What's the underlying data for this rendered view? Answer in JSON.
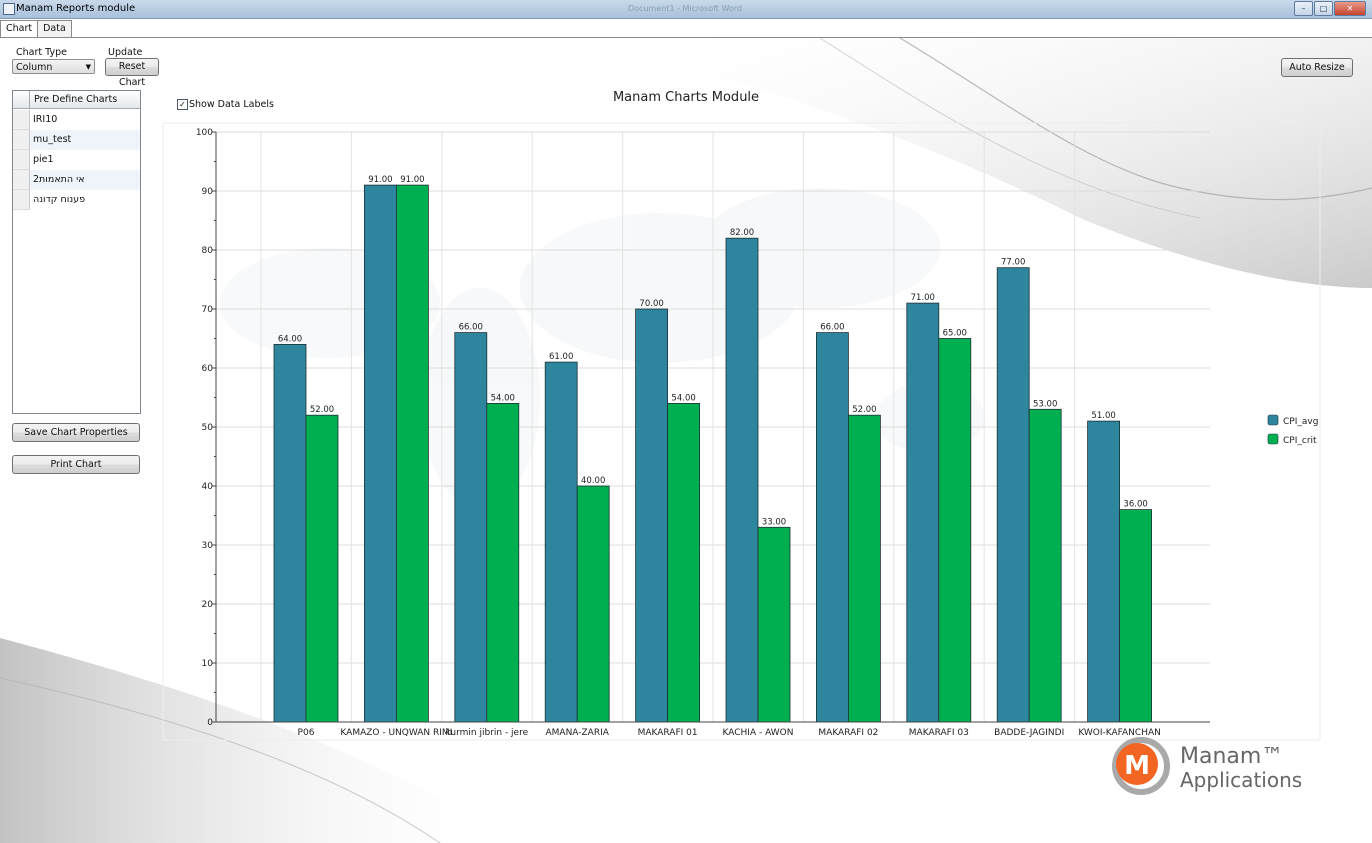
{
  "window": {
    "title": "Manam Reports module",
    "background_title": "Document1 - Microsoft Word",
    "controls": {
      "minimize": "–",
      "maximize": "□",
      "close": "✕"
    }
  },
  "tabs": [
    {
      "label": "Chart",
      "active": true
    },
    {
      "label": "Data",
      "active": false
    }
  ],
  "controls": {
    "chart_type_label": "Chart Type",
    "chart_type_value": "Column",
    "update_label": "Update",
    "reset_button": "Reset Chart",
    "auto_resize_button": "Auto Resize",
    "show_data_labels": "Show Data Labels",
    "show_data_labels_checked": true,
    "save_button": "Save Chart Properties",
    "print_button": "Print Chart"
  },
  "predefined_charts": {
    "header": "Pre Define Charts",
    "items": [
      "IRI10",
      "mu_test",
      "pie1",
      "אי התאמות2",
      "פענוח קדונה"
    ]
  },
  "logo": {
    "name": "Manam™",
    "subtitle": "Applications"
  },
  "colors": {
    "cpi_avg": "#2e869e",
    "cpi_crit": "#00b050"
  },
  "chart_data": {
    "type": "bar",
    "title": "Manam Charts Module",
    "xlabel": "",
    "ylabel": "",
    "ylim": [
      0,
      100
    ],
    "yticks": [
      0,
      10,
      20,
      30,
      40,
      50,
      60,
      70,
      80,
      90,
      100
    ],
    "grid": true,
    "legend_position": "right",
    "categories": [
      "P06",
      "KAMAZO - UNQWAN RIMI",
      "kurmin jibrin - jere",
      "AMANA-ZARIA",
      "MAKARAFI 01",
      "KACHIA - AWON",
      "MAKARAFI 02",
      "MAKARAFI 03",
      "BADDE-JAGINDI",
      "KWOI-KAFANCHAN"
    ],
    "series": [
      {
        "name": "CPI_avg",
        "color": "#2e869e",
        "values": [
          64,
          91,
          66,
          61,
          70,
          82,
          66,
          71,
          77,
          51
        ],
        "labels": [
          "64.00",
          "91.00",
          "66.00",
          "61.00",
          "70.00",
          "82.00",
          "66.00",
          "71.00",
          "77.00",
          "51.00"
        ]
      },
      {
        "name": "CPI_crit",
        "color": "#00b050",
        "values": [
          52,
          91,
          54,
          40,
          54,
          33,
          52,
          65,
          53,
          36
        ],
        "labels": [
          "52.00",
          "91.00",
          "54.00",
          "40.00",
          "54.00",
          "33.00",
          "52.00",
          "65.00",
          "53.00",
          "36.00"
        ]
      }
    ]
  }
}
